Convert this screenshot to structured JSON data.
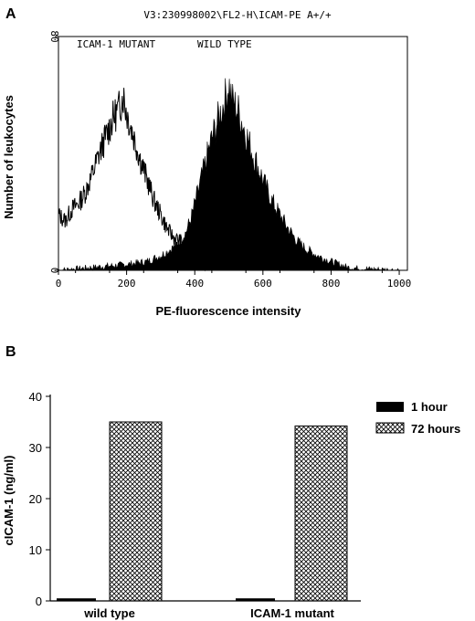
{
  "figure": {
    "panel_a_label": "A",
    "panel_b_label": "B"
  },
  "chart_data": [
    {
      "panel": "A",
      "type": "area",
      "title": "V3:230998002\\FL2-H\\ICAM-PE A+/+",
      "xlabel": "PE-fluorescence intensity",
      "ylabel": "Number of leukocytes",
      "xlim": [
        0,
        1024
      ],
      "ylim": [
        0,
        80
      ],
      "xticks": [
        "0",
        "200",
        "400",
        "600",
        "800",
        "1000"
      ],
      "yticks": [
        "0",
        "80"
      ],
      "annotations": [
        "ICAM-1 MUTANT",
        "WILD TYPE"
      ],
      "series": [
        {
          "name": "ICAM-1 MUTANT",
          "style": "outline",
          "x": [
            0,
            20,
            40,
            60,
            80,
            100,
            120,
            140,
            160,
            180,
            190,
            200,
            220,
            240,
            260,
            280,
            300,
            320,
            340,
            360,
            380,
            400,
            420,
            440
          ],
          "y": [
            19,
            17,
            21,
            23,
            27,
            33,
            40,
            46,
            52,
            56,
            60,
            54,
            46,
            38,
            31,
            24,
            19,
            14,
            11,
            10,
            8,
            5,
            2,
            0
          ]
        },
        {
          "name": "WILD TYPE",
          "style": "filled",
          "x": [
            0,
            100,
            200,
            260,
            300,
            340,
            370,
            390,
            410,
            430,
            450,
            470,
            490,
            500,
            510,
            530,
            550,
            570,
            590,
            610,
            630,
            650,
            670,
            700,
            730,
            760,
            800,
            850,
            900,
            1000
          ],
          "y": [
            0,
            1,
            2,
            3,
            5,
            8,
            12,
            18,
            27,
            36,
            45,
            52,
            59,
            64,
            58,
            54,
            47,
            40,
            34,
            28,
            23,
            19,
            15,
            10,
            7,
            5,
            3,
            1,
            0.5,
            0
          ]
        }
      ]
    },
    {
      "panel": "B",
      "type": "bar",
      "categories": [
        "wild type",
        "ICAM-1 mutant"
      ],
      "ylabel": "cICAM-1 (ng/ml)",
      "ylim": [
        0,
        40
      ],
      "yticks": [
        "0",
        "10",
        "20",
        "30",
        "40"
      ],
      "legend": "top-right",
      "series": [
        {
          "name": "1 hour",
          "pattern": "solid-black",
          "values": [
            0.5,
            0.5
          ]
        },
        {
          "name": "72 hours",
          "pattern": "crosshatch",
          "values": [
            35,
            34.2
          ]
        }
      ]
    }
  ]
}
